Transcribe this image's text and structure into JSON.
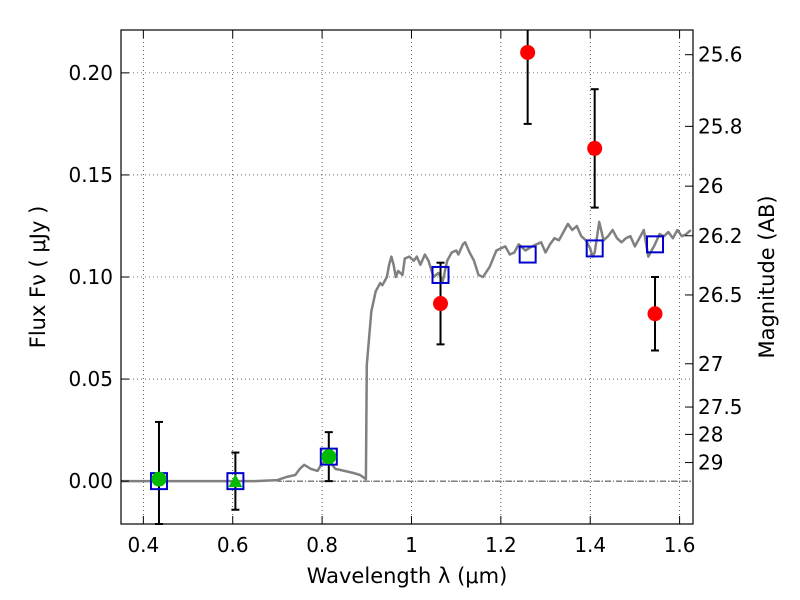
{
  "chart_data": {
    "type": "scatter",
    "xlabel": "Wavelength  λ (μm)",
    "ylabel": "Flux  Fν  ( μJy )",
    "ylabel_right": "Magnitude (AB)",
    "xlim": [
      0.35,
      1.63
    ],
    "ylim": [
      -0.021,
      0.221
    ],
    "x_ticks": [
      0.4,
      0.6,
      0.8,
      1.0,
      1.2,
      1.4,
      1.6
    ],
    "x_tick_labels": [
      "0.4",
      "0.6",
      "0.8",
      "1",
      "1.2",
      "1.4",
      "1.6"
    ],
    "y_ticks": [
      0.0,
      0.05,
      0.1,
      0.15,
      0.2
    ],
    "y_tick_labels": [
      "0.00",
      "0.05",
      "0.10",
      "0.15",
      "0.20"
    ],
    "mag_ticks": [
      {
        "label": "25.6",
        "flux": 0.2089
      },
      {
        "label": "25.8",
        "flux": 0.1738
      },
      {
        "label": "26",
        "flux": 0.1445
      },
      {
        "label": "26.2",
        "flux": 0.1202
      },
      {
        "label": "26.5",
        "flux": 0.0912
      },
      {
        "label": "27",
        "flux": 0.0575
      },
      {
        "label": "27.5",
        "flux": 0.0363
      },
      {
        "label": "28",
        "flux": 0.0229
      },
      {
        "label": "29",
        "flux": 0.0091
      }
    ],
    "grid": true,
    "zero_line": true,
    "colors": {
      "red": "#ff0000",
      "green": "#00bb00",
      "blue": "#0000cc",
      "model": "#808080"
    },
    "series": [
      {
        "marker": "circle",
        "color": "#ff0000",
        "points": [
          {
            "x": 1.065,
            "y": 0.087,
            "err": 0.02
          },
          {
            "x": 1.26,
            "y": 0.21,
            "err": 0.035
          },
          {
            "x": 1.41,
            "y": 0.163,
            "err": 0.029
          },
          {
            "x": 1.545,
            "y": 0.082,
            "err": 0.018
          }
        ]
      },
      {
        "marker": "circle",
        "color": "#00bb00",
        "points": [
          {
            "x": 0.435,
            "y": 0.001,
            "err": 0.028
          },
          {
            "x": 0.815,
            "y": 0.012,
            "err": 0.012
          }
        ]
      },
      {
        "marker": "triangle",
        "color": "#00bb00",
        "points": [
          {
            "x": 0.606,
            "y": 0.0,
            "err": 0.014
          }
        ]
      },
      {
        "marker": "square",
        "color": "#0000cc",
        "points": [
          {
            "x": 0.435,
            "y": 0.0
          },
          {
            "x": 0.606,
            "y": 0.0
          },
          {
            "x": 0.815,
            "y": 0.012
          },
          {
            "x": 1.065,
            "y": 0.101
          },
          {
            "x": 1.26,
            "y": 0.111
          },
          {
            "x": 1.41,
            "y": 0.114
          },
          {
            "x": 1.545,
            "y": 0.116
          }
        ]
      }
    ],
    "model_spectrum": {
      "color": "#808080",
      "points": [
        [
          0.35,
          0.0
        ],
        [
          0.55,
          0.0
        ],
        [
          0.65,
          0.0
        ],
        [
          0.7,
          0.0005
        ],
        [
          0.72,
          0.002
        ],
        [
          0.74,
          0.003
        ],
        [
          0.75,
          0.006
        ],
        [
          0.76,
          0.008
        ],
        [
          0.775,
          0.006
        ],
        [
          0.79,
          0.005
        ],
        [
          0.8,
          0.009
        ],
        [
          0.815,
          0.01
        ],
        [
          0.83,
          0.006
        ],
        [
          0.85,
          0.005
        ],
        [
          0.87,
          0.004
        ],
        [
          0.885,
          0.003
        ],
        [
          0.898,
          0.001
        ],
        [
          0.9,
          0.057
        ],
        [
          0.91,
          0.083
        ],
        [
          0.92,
          0.093
        ],
        [
          0.93,
          0.097
        ],
        [
          0.935,
          0.096
        ],
        [
          0.945,
          0.1
        ],
        [
          0.95,
          0.106
        ],
        [
          0.955,
          0.11
        ],
        [
          0.96,
          0.106
        ],
        [
          0.965,
          0.1
        ],
        [
          0.97,
          0.103
        ],
        [
          0.98,
          0.101
        ],
        [
          0.985,
          0.109
        ],
        [
          0.995,
          0.11
        ],
        [
          1.005,
          0.108
        ],
        [
          1.012,
          0.11
        ],
        [
          1.02,
          0.106
        ],
        [
          1.03,
          0.111
        ],
        [
          1.038,
          0.108
        ],
        [
          1.045,
          0.103
        ],
        [
          1.05,
          0.1
        ],
        [
          1.06,
          0.102
        ],
        [
          1.07,
          0.098
        ],
        [
          1.08,
          0.108
        ],
        [
          1.09,
          0.112
        ],
        [
          1.1,
          0.113
        ],
        [
          1.105,
          0.111
        ],
        [
          1.115,
          0.116
        ],
        [
          1.12,
          0.117
        ],
        [
          1.13,
          0.112
        ],
        [
          1.14,
          0.108
        ],
        [
          1.15,
          0.101
        ],
        [
          1.16,
          0.1
        ],
        [
          1.175,
          0.105
        ],
        [
          1.19,
          0.113
        ],
        [
          1.2,
          0.114
        ],
        [
          1.21,
          0.115
        ],
        [
          1.22,
          0.111
        ],
        [
          1.23,
          0.112
        ],
        [
          1.24,
          0.116
        ],
        [
          1.255,
          0.113
        ],
        [
          1.27,
          0.115
        ],
        [
          1.28,
          0.116
        ],
        [
          1.29,
          0.117
        ],
        [
          1.3,
          0.112
        ],
        [
          1.31,
          0.116
        ],
        [
          1.32,
          0.119
        ],
        [
          1.33,
          0.118
        ],
        [
          1.34,
          0.122
        ],
        [
          1.35,
          0.126
        ],
        [
          1.36,
          0.123
        ],
        [
          1.37,
          0.125
        ],
        [
          1.38,
          0.12
        ],
        [
          1.39,
          0.118
        ],
        [
          1.4,
          0.114
        ],
        [
          1.405,
          0.11
        ],
        [
          1.41,
          0.112
        ],
        [
          1.42,
          0.127
        ],
        [
          1.43,
          0.118
        ],
        [
          1.44,
          0.12
        ],
        [
          1.45,
          0.123
        ],
        [
          1.46,
          0.119
        ],
        [
          1.47,
          0.117
        ],
        [
          1.48,
          0.119
        ],
        [
          1.49,
          0.12
        ],
        [
          1.5,
          0.115
        ],
        [
          1.51,
          0.119
        ],
        [
          1.52,
          0.123
        ],
        [
          1.53,
          0.11
        ],
        [
          1.545,
          0.116
        ],
        [
          1.555,
          0.121
        ],
        [
          1.565,
          0.12
        ],
        [
          1.575,
          0.122
        ],
        [
          1.585,
          0.119
        ],
        [
          1.595,
          0.123
        ],
        [
          1.605,
          0.12
        ],
        [
          1.615,
          0.121
        ],
        [
          1.625,
          0.123
        ]
      ]
    }
  }
}
